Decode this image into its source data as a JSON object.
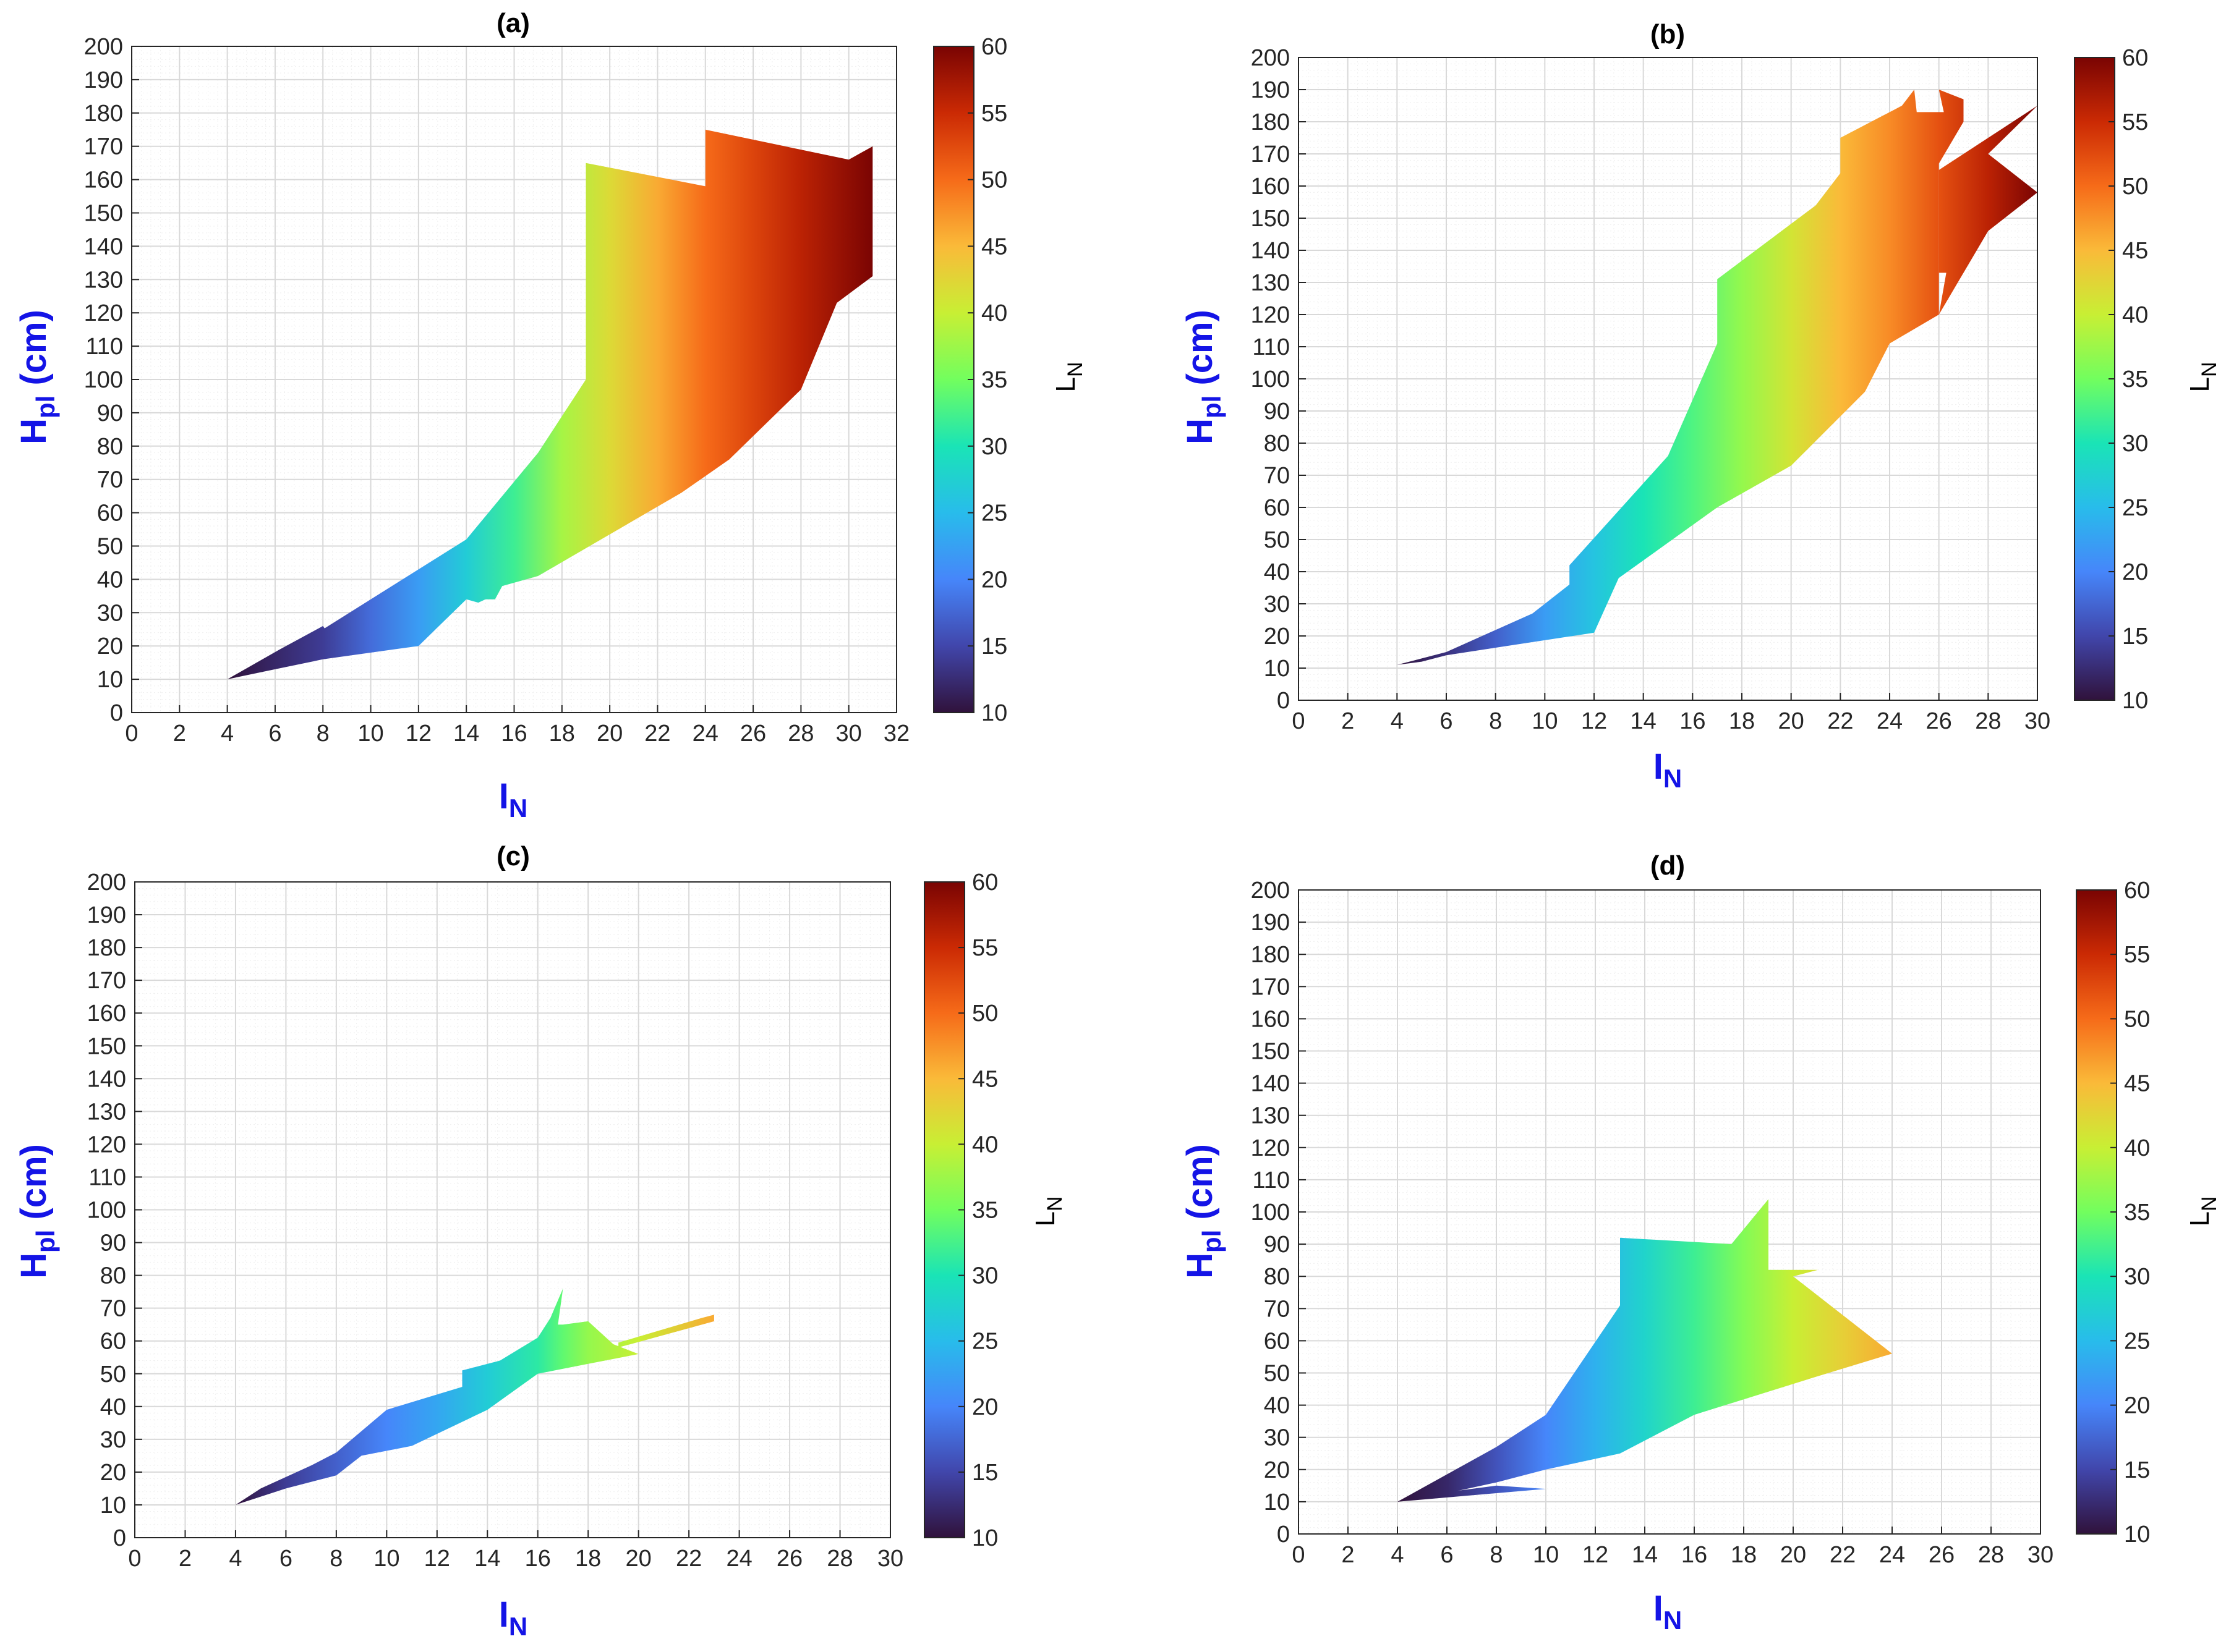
{
  "colors": {
    "axis_label": "#1414e6",
    "grid_major": "#d9d9d9",
    "grid_minor": "#efefef",
    "axis_line": "#262626"
  },
  "colormap": [
    "#30123b",
    "#4146ab",
    "#4686fa",
    "#28bceb",
    "#1ae4b6",
    "#72fe5e",
    "#c8ef34",
    "#faba39",
    "#f66b19",
    "#cb2a04",
    "#7a0403"
  ],
  "chart_data": [
    {
      "type": "area",
      "title": "(a)",
      "xlabel": {
        "main": "I",
        "sub": "N"
      },
      "ylabel": {
        "main": "H",
        "sub": "pl",
        "suffix": " (cm)"
      },
      "colorbar": {
        "label": {
          "main": "L",
          "sub": "N"
        },
        "range": [
          10,
          60
        ],
        "ticks": [
          "10",
          "15",
          "20",
          "25",
          "30",
          "35",
          "40",
          "45",
          "50",
          "55",
          "60"
        ]
      },
      "xlim": [
        0,
        32
      ],
      "ylim": [
        0,
        200
      ],
      "xticks": [
        "0",
        "2",
        "4",
        "6",
        "8",
        "10",
        "12",
        "14",
        "16",
        "18",
        "20",
        "22",
        "24",
        "26",
        "28",
        "30",
        "32"
      ],
      "yticks": [
        "0",
        "10",
        "20",
        "30",
        "40",
        "50",
        "60",
        "70",
        "80",
        "90",
        "100",
        "110",
        "120",
        "130",
        "140",
        "150",
        "160",
        "170",
        "180",
        "190",
        "200"
      ],
      "color_by_x": [
        [
          4,
          10
        ],
        [
          8,
          14
        ],
        [
          10,
          18
        ],
        [
          12,
          22
        ],
        [
          14,
          27
        ],
        [
          16,
          32
        ],
        [
          18,
          38
        ],
        [
          20,
          42
        ],
        [
          22,
          46
        ],
        [
          24,
          50
        ],
        [
          26,
          53
        ],
        [
          28,
          56
        ],
        [
          31,
          60
        ]
      ],
      "regions": [
        [
          [
            4,
            10
          ],
          [
            6.2,
            19
          ],
          [
            8,
            26
          ],
          [
            8.2,
            24
          ],
          [
            8,
            25
          ],
          [
            14,
            52
          ],
          [
            17,
            78
          ],
          [
            19,
            100
          ],
          [
            19,
            165
          ],
          [
            24,
            158
          ],
          [
            24,
            175
          ],
          [
            30,
            166
          ],
          [
            31,
            170
          ],
          [
            31,
            131
          ],
          [
            29.5,
            123
          ],
          [
            28,
            97
          ],
          [
            25,
            76
          ],
          [
            23,
            66
          ],
          [
            17,
            41
          ],
          [
            15.5,
            38
          ],
          [
            15.2,
            34
          ],
          [
            14.8,
            34
          ],
          [
            14.5,
            33
          ],
          [
            14,
            34
          ],
          [
            12,
            20
          ],
          [
            8,
            16
          ],
          [
            6,
            13
          ],
          [
            4,
            10
          ]
        ]
      ]
    },
    {
      "type": "area",
      "title": "(b)",
      "xlabel": {
        "main": "I",
        "sub": "N"
      },
      "ylabel": {
        "main": "H",
        "sub": "pl",
        "suffix": " (cm)"
      },
      "colorbar": {
        "label": {
          "main": "L",
          "sub": "N"
        },
        "range": [
          10,
          60
        ],
        "ticks": [
          "10",
          "15",
          "20",
          "25",
          "30",
          "35",
          "40",
          "45",
          "50",
          "55",
          "60"
        ]
      },
      "xlim": [
        0,
        30
      ],
      "ylim": [
        0,
        200
      ],
      "xticks": [
        "0",
        "2",
        "4",
        "6",
        "8",
        "10",
        "12",
        "14",
        "16",
        "18",
        "20",
        "22",
        "24",
        "26",
        "28",
        "30"
      ],
      "yticks": [
        "0",
        "10",
        "20",
        "30",
        "40",
        "50",
        "60",
        "70",
        "80",
        "90",
        "100",
        "110",
        "120",
        "130",
        "140",
        "150",
        "160",
        "170",
        "180",
        "190",
        "200"
      ],
      "color_by_x": [
        [
          4,
          10
        ],
        [
          6,
          13
        ],
        [
          8,
          17
        ],
        [
          10,
          22
        ],
        [
          12,
          26
        ],
        [
          14,
          30
        ],
        [
          16,
          33
        ],
        [
          18,
          37
        ],
        [
          20,
          41
        ],
        [
          22,
          45
        ],
        [
          24,
          48
        ],
        [
          26,
          52
        ],
        [
          28,
          56
        ],
        [
          30,
          60
        ]
      ],
      "regions": [
        [
          [
            4,
            11
          ],
          [
            5,
            13
          ],
          [
            6,
            15
          ],
          [
            9.5,
            27
          ],
          [
            11,
            36
          ],
          [
            11,
            42
          ],
          [
            15,
            76
          ],
          [
            17,
            111
          ],
          [
            17,
            131
          ],
          [
            21,
            154
          ],
          [
            22,
            164
          ],
          [
            22,
            175
          ],
          [
            24.5,
            185
          ],
          [
            25,
            190
          ],
          [
            25.1,
            183
          ],
          [
            26.2,
            183
          ],
          [
            26,
            190
          ],
          [
            27,
            187
          ],
          [
            27,
            180
          ],
          [
            26,
            167
          ],
          [
            26,
            120
          ],
          [
            24,
            111
          ],
          [
            23,
            96
          ],
          [
            20,
            73
          ],
          [
            17,
            60
          ],
          [
            13,
            38
          ],
          [
            12,
            21
          ],
          [
            6,
            14
          ],
          [
            5,
            12
          ],
          [
            4,
            11
          ]
        ],
        [
          [
            26,
            133
          ],
          [
            26,
            165
          ],
          [
            30,
            185
          ],
          [
            28,
            170
          ],
          [
            30,
            158
          ],
          [
            28,
            146
          ],
          [
            26,
            120
          ],
          [
            26.3,
            133
          ]
        ]
      ]
    },
    {
      "type": "area",
      "title": "(c)",
      "xlabel": {
        "main": "I",
        "sub": "N"
      },
      "ylabel": {
        "main": "H",
        "sub": "pl",
        "suffix": " (cm)"
      },
      "colorbar": {
        "label": {
          "main": "L",
          "sub": "N"
        },
        "range": [
          10,
          60
        ],
        "ticks": [
          "10",
          "15",
          "20",
          "25",
          "30",
          "35",
          "40",
          "45",
          "50",
          "55",
          "60"
        ]
      },
      "xlim": [
        0,
        30
      ],
      "ylim": [
        0,
        200
      ],
      "xticks": [
        "0",
        "2",
        "4",
        "6",
        "8",
        "10",
        "12",
        "14",
        "16",
        "18",
        "20",
        "22",
        "24",
        "26",
        "28",
        "30"
      ],
      "yticks": [
        "0",
        "10",
        "20",
        "30",
        "40",
        "50",
        "60",
        "70",
        "80",
        "90",
        "100",
        "110",
        "120",
        "130",
        "140",
        "150",
        "160",
        "170",
        "180",
        "190",
        "200"
      ],
      "color_by_x": [
        [
          4,
          10
        ],
        [
          6,
          14
        ],
        [
          8,
          17
        ],
        [
          10,
          20
        ],
        [
          12,
          23
        ],
        [
          14,
          27
        ],
        [
          16,
          31
        ],
        [
          17,
          34
        ],
        [
          18,
          37
        ],
        [
          20,
          40
        ],
        [
          23,
          46
        ]
      ],
      "regions": [
        [
          [
            4,
            10
          ],
          [
            5,
            15
          ],
          [
            7,
            22
          ],
          [
            8,
            26
          ],
          [
            10,
            39
          ],
          [
            13,
            46
          ],
          [
            13,
            51
          ],
          [
            14.5,
            54
          ],
          [
            16,
            61
          ],
          [
            16.5,
            67
          ],
          [
            17,
            76
          ],
          [
            16.8,
            65
          ],
          [
            17,
            65
          ],
          [
            18,
            66
          ],
          [
            19,
            59
          ],
          [
            20,
            56
          ],
          [
            18,
            53
          ],
          [
            16,
            50
          ],
          [
            14,
            39
          ],
          [
            11,
            28
          ],
          [
            9,
            25
          ],
          [
            8,
            19
          ],
          [
            6,
            15
          ],
          [
            4,
            10
          ]
        ],
        [
          [
            19.2,
            58
          ],
          [
            23,
            66
          ],
          [
            23,
            68
          ],
          [
            22.5,
            67
          ],
          [
            19.2,
            59.5
          ]
        ]
      ]
    },
    {
      "type": "area",
      "title": "(d)",
      "xlabel": {
        "main": "I",
        "sub": "N"
      },
      "ylabel": {
        "main": "H",
        "sub": "pl",
        "suffix": " (cm)"
      },
      "colorbar": {
        "label": {
          "main": "L",
          "sub": "N"
        },
        "range": [
          10,
          60
        ],
        "ticks": [
          "10",
          "15",
          "20",
          "25",
          "30",
          "35",
          "40",
          "45",
          "50",
          "55",
          "60"
        ]
      },
      "xlim": [
        0,
        30
      ],
      "ylim": [
        0,
        200
      ],
      "xticks": [
        "0",
        "2",
        "4",
        "6",
        "8",
        "10",
        "12",
        "14",
        "16",
        "18",
        "20",
        "22",
        "24",
        "26",
        "28",
        "30"
      ],
      "yticks": [
        "0",
        "10",
        "20",
        "30",
        "40",
        "50",
        "60",
        "70",
        "80",
        "90",
        "100",
        "110",
        "120",
        "130",
        "140",
        "150",
        "160",
        "170",
        "180",
        "190",
        "200"
      ],
      "color_by_x": [
        [
          4,
          10
        ],
        [
          6,
          12
        ],
        [
          8,
          16
        ],
        [
          10,
          20
        ],
        [
          12,
          24
        ],
        [
          14,
          28
        ],
        [
          16,
          32
        ],
        [
          18,
          36
        ],
        [
          20,
          40
        ],
        [
          22,
          43
        ],
        [
          24,
          46
        ]
      ],
      "regions": [
        [
          [
            4,
            10
          ],
          [
            8,
            27
          ],
          [
            10,
            37
          ],
          [
            13,
            71
          ],
          [
            13,
            92
          ],
          [
            17.5,
            90
          ],
          [
            19,
            104
          ],
          [
            19,
            82
          ],
          [
            21,
            82
          ],
          [
            20,
            80
          ],
          [
            24,
            56
          ],
          [
            21,
            49
          ],
          [
            16,
            37
          ],
          [
            13,
            25
          ],
          [
            10,
            20
          ],
          [
            8,
            16
          ],
          [
            5,
            11
          ],
          [
            4,
            10
          ]
        ],
        [
          [
            4,
            10
          ],
          [
            10,
            14
          ],
          [
            8,
            15
          ],
          [
            6,
            13
          ],
          [
            4,
            10
          ]
        ]
      ]
    }
  ]
}
